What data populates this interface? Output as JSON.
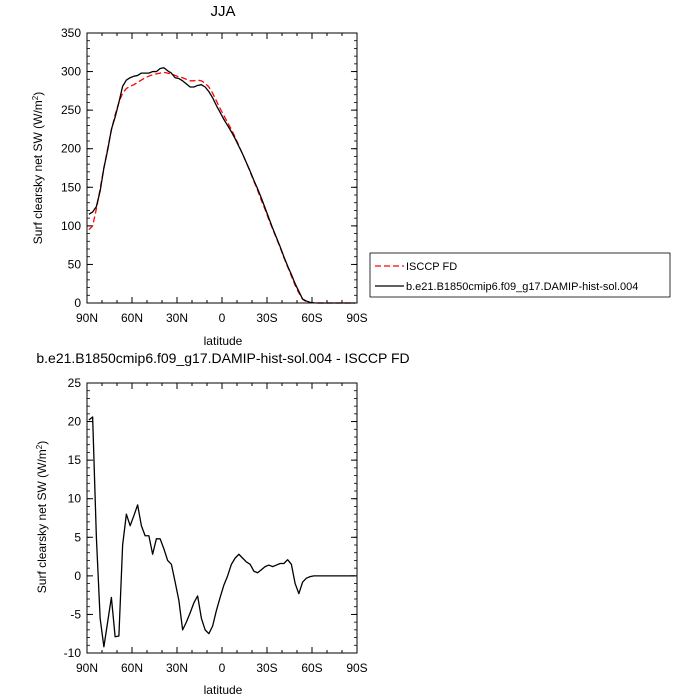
{
  "chart_data": [
    {
      "type": "line",
      "title": "JJA",
      "xlabel": "latitude",
      "ylabel": "Surf clearsky net SW (W/m",
      "ylabel_sup": "2",
      "ylabel_close": ")",
      "xlim": [
        90,
        -90
      ],
      "ylim": [
        0,
        350
      ],
      "x_ticks": [
        90,
        60,
        30,
        0,
        -30,
        -60,
        -90
      ],
      "x_tick_labels": [
        "90N",
        "60N",
        "30N",
        "0",
        "30S",
        "60S",
        "90S"
      ],
      "y_ticks": [
        0,
        50,
        100,
        150,
        200,
        250,
        300,
        350
      ],
      "y_tick_labels": [
        "0",
        "50",
        "100",
        "150",
        "200",
        "250",
        "300",
        "350"
      ],
      "grid": false,
      "legend_position": "right",
      "series": [
        {
          "name": "ISCCP FD",
          "color": "#ff0000",
          "style": "dashed",
          "x": [
            88.75,
            86.25,
            83.75,
            81.25,
            78.75,
            76.25,
            73.75,
            71.25,
            68.75,
            66.25,
            63.75,
            61.25,
            58.75,
            56.25,
            53.75,
            51.25,
            48.75,
            46.25,
            43.75,
            41.25,
            38.75,
            36.25,
            33.75,
            31.25,
            28.75,
            26.25,
            23.75,
            21.25,
            18.75,
            16.25,
            13.75,
            11.25,
            8.75,
            6.25,
            3.75,
            1.25,
            -1.25,
            -3.75,
            -6.25,
            -8.75,
            -11.25,
            -13.75,
            -16.25,
            -18.75,
            -21.25,
            -23.75,
            -26.25,
            -28.75,
            -31.25,
            -33.75,
            -36.25,
            -38.75,
            -41.25,
            -43.75,
            -46.25,
            -48.75,
            -51.25,
            -53.75,
            -56.25,
            -58.75,
            -61.25,
            -63.75,
            -66.25,
            -68.75,
            -71.25,
            -73.75,
            -76.25,
            -78.75,
            -81.25,
            -83.75,
            -86.25,
            -88.75
          ],
          "y": [
            95,
            100,
            122,
            148,
            175,
            200,
            224,
            244,
            260,
            272,
            278,
            281,
            283,
            286,
            289,
            292,
            294,
            296,
            297,
            298,
            299,
            298,
            297,
            295,
            293,
            292,
            290,
            288,
            288,
            289,
            288,
            285,
            280,
            272,
            262,
            252,
            243,
            234,
            225,
            215,
            204,
            193,
            182,
            170,
            158,
            146,
            133,
            121,
            108,
            96,
            84,
            72,
            59,
            47,
            35,
            23,
            13,
            5,
            1.5,
            0.5,
            0.2,
            0,
            0,
            0,
            0,
            0,
            0,
            0,
            0,
            0,
            0,
            0
          ]
        },
        {
          "name": "b.e21.B1850cmip6.f09_g17.DAMIP-hist-sol.004",
          "color": "#000000",
          "style": "solid",
          "x": [
            88.75,
            86.25,
            83.75,
            81.25,
            78.75,
            76.25,
            73.75,
            71.25,
            68.75,
            66.25,
            63.75,
            61.25,
            58.75,
            56.25,
            53.75,
            51.25,
            48.75,
            46.25,
            43.75,
            41.25,
            38.75,
            36.25,
            33.75,
            31.25,
            28.75,
            26.25,
            23.75,
            21.25,
            18.75,
            16.25,
            13.75,
            11.25,
            8.75,
            6.25,
            3.75,
            1.25,
            -1.25,
            -3.75,
            -6.25,
            -8.75,
            -11.25,
            -13.75,
            -16.25,
            -18.75,
            -21.25,
            -23.75,
            -26.25,
            -28.75,
            -31.25,
            -33.75,
            -36.25,
            -38.75,
            -41.25,
            -43.75,
            -46.25,
            -48.75,
            -51.25,
            -53.75,
            -56.25,
            -58.75,
            -61.25,
            -63.75,
            -66.25,
            -68.75,
            -71.25,
            -73.75,
            -76.25,
            -78.75,
            -81.25,
            -83.75,
            -86.25,
            -88.75
          ],
          "y": [
            115,
            118,
            125,
            145,
            175,
            198,
            225,
            241,
            260,
            281,
            289,
            292,
            294,
            295,
            298,
            298,
            298,
            300,
            300,
            304,
            305,
            301,
            298,
            292,
            291,
            288,
            284,
            280,
            280,
            282,
            283,
            280,
            274,
            266,
            256,
            247,
            238,
            230,
            222,
            213,
            203,
            193,
            182,
            171,
            159,
            148,
            136,
            123,
            110,
            97,
            85,
            73,
            60,
            48,
            37,
            25,
            15,
            5,
            2.5,
            0.8,
            0.2,
            0,
            0,
            0,
            0,
            0,
            0,
            0,
            0,
            0,
            0,
            0
          ]
        }
      ]
    },
    {
      "type": "line",
      "title": "b.e21.B1850cmip6.f09_g17.DAMIP-hist-sol.004 - ISCCP FD",
      "xlabel": "latitude",
      "ylabel": "Surf clearsky net SW (W/m",
      "ylabel_sup": "2",
      "ylabel_close": ")",
      "xlim": [
        90,
        -90
      ],
      "ylim": [
        -10,
        25
      ],
      "x_ticks": [
        90,
        60,
        30,
        0,
        -30,
        -60,
        -90
      ],
      "x_tick_labels": [
        "90N",
        "60N",
        "30N",
        "0",
        "30S",
        "60S",
        "90S"
      ],
      "y_ticks": [
        -10,
        -5,
        0,
        5,
        10,
        15,
        20,
        25
      ],
      "y_tick_labels": [
        "-10",
        "-5",
        "0",
        "5",
        "10",
        "15",
        "20",
        "25"
      ],
      "grid": false,
      "series": [
        {
          "color": "#000000",
          "style": "solid",
          "x": [
            88.75,
            86.25,
            83.75,
            81.25,
            78.75,
            76.25,
            73.75,
            71.25,
            68.75,
            66.25,
            63.75,
            61.25,
            58.75,
            56.25,
            53.75,
            51.25,
            48.75,
            46.25,
            43.75,
            41.25,
            38.75,
            36.25,
            33.75,
            31.25,
            28.75,
            26.25,
            23.75,
            21.25,
            18.75,
            16.25,
            13.75,
            11.25,
            8.75,
            6.25,
            3.75,
            1.25,
            -1.25,
            -3.75,
            -6.25,
            -8.75,
            -11.25,
            -13.75,
            -16.25,
            -18.75,
            -21.25,
            -23.75,
            -26.25,
            -28.75,
            -31.25,
            -33.75,
            -36.25,
            -38.75,
            -41.25,
            -43.75,
            -46.25,
            -48.75,
            -51.25,
            -53.75,
            -56.25,
            -58.75,
            -61.25,
            -63.75,
            -66.25,
            -68.75,
            -71.25,
            -73.75,
            -76.25,
            -78.75,
            -81.25,
            -83.75,
            -86.25,
            -88.75
          ],
          "y": [
            20.2,
            20.6,
            5.0,
            -5.5,
            -9.2,
            -6.0,
            -2.8,
            -7.9,
            -7.8,
            4.0,
            8.0,
            6.5,
            7.8,
            9.2,
            6.5,
            5.2,
            5.2,
            2.8,
            4.8,
            4.8,
            3.5,
            2.0,
            1.5,
            -0.8,
            -3.2,
            -7.0,
            -6.0,
            -4.8,
            -3.5,
            -2.6,
            -5.5,
            -7.0,
            -7.5,
            -6.5,
            -4.5,
            -2.8,
            -1.2,
            0.0,
            1.5,
            2.3,
            2.8,
            2.3,
            1.8,
            1.5,
            0.6,
            0.4,
            0.8,
            1.2,
            1.4,
            1.2,
            1.4,
            1.6,
            1.6,
            2.1,
            1.5,
            -1.0,
            -2.3,
            -0.8,
            -0.3,
            -0.1,
            0.0,
            0.0,
            0.0,
            0.0,
            0.0,
            0.0,
            0.0,
            0.0,
            0.0,
            0.0,
            0.0,
            0.0
          ]
        }
      ]
    }
  ]
}
